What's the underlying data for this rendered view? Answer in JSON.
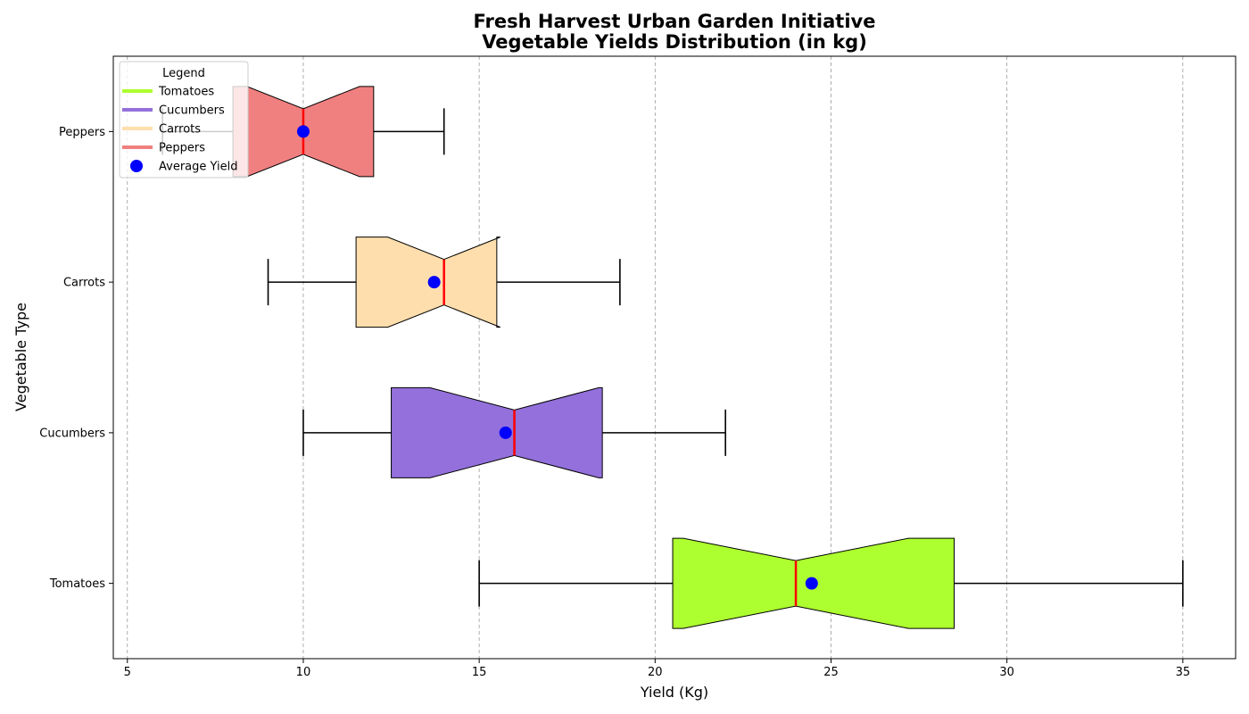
{
  "chart_data": {
    "type": "boxplot",
    "orientation": "horizontal",
    "notched": true,
    "title_lines": [
      "Fresh Harvest Urban Garden Initiative",
      "Vegetable Yields Distribution (in kg)"
    ],
    "xlabel": "Yield (Kg)",
    "ylabel": "Vegetable Type",
    "xlim": [
      4.6,
      36.5
    ],
    "xticks": [
      5,
      10,
      15,
      20,
      25,
      30,
      35
    ],
    "grid": "vertical dashed",
    "legend": {
      "title": "Legend",
      "placement": "upper-left",
      "average_label": "Average Yield"
    },
    "categories": [
      "Tomatoes",
      "Cucumbers",
      "Carrots",
      "Peppers"
    ],
    "series": [
      {
        "name": "Tomatoes",
        "color": "#adff2f",
        "min": 15,
        "q1": 20.5,
        "median": 24,
        "q3": 28.5,
        "max": 35,
        "notch_low": 20.8,
        "notch_high": 27.2,
        "mean": 24.45
      },
      {
        "name": "Cucumbers",
        "color": "#9370db",
        "min": 10,
        "q1": 12.5,
        "median": 16,
        "q3": 18.5,
        "max": 22,
        "notch_low": 13.6,
        "notch_high": 18.4,
        "mean": 15.75
      },
      {
        "name": "Carrots",
        "color": "#ffdead",
        "min": 9,
        "q1": 11.5,
        "median": 14,
        "q3": 15.5,
        "max": 19,
        "notch_low": 12.4,
        "notch_high": 15.6,
        "mean": 13.72
      },
      {
        "name": "Peppers",
        "color": "#f08080",
        "min": 6,
        "q1": 8,
        "median": 10,
        "q3": 12,
        "max": 14,
        "notch_low": 8.4,
        "notch_high": 11.6,
        "mean": 10
      }
    ],
    "median_color": "#ff0000",
    "mean_color": "#0000ff"
  }
}
